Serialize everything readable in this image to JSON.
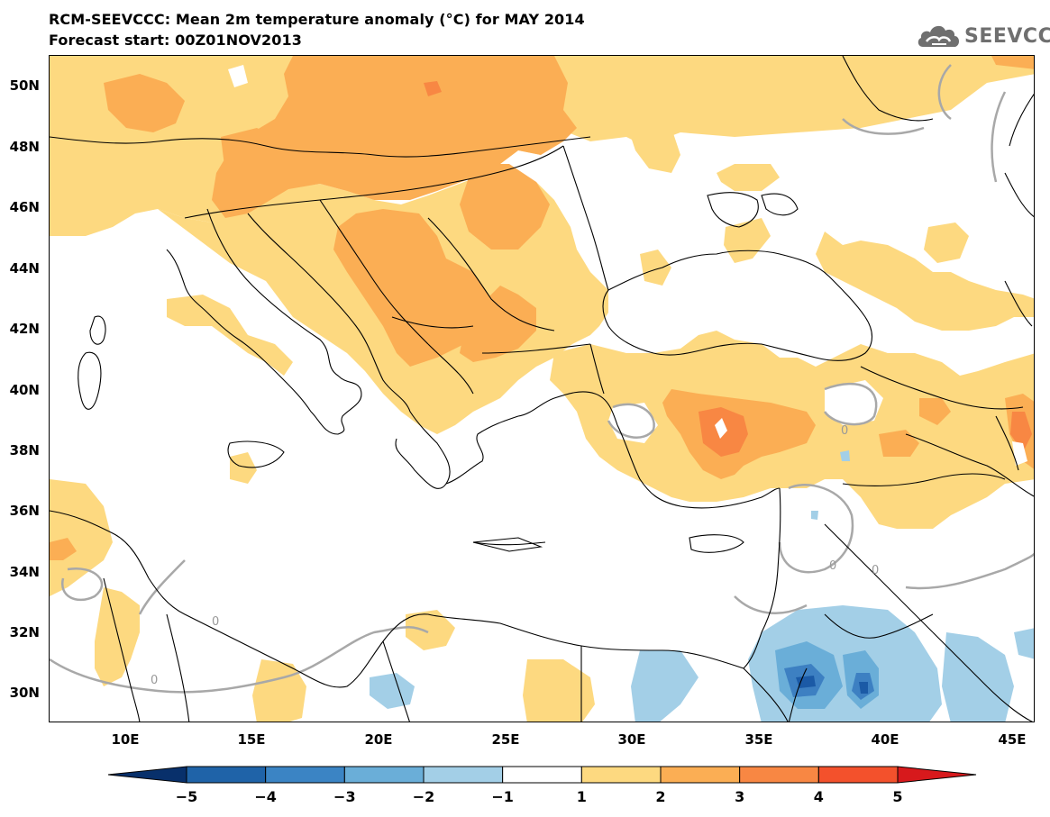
{
  "header": {
    "title_line1": "RCM-SEEVCCC: Mean 2m temperature anomaly (°C) for MAY 2014",
    "title_line2": "Forecast start: 00Z01NOV2013",
    "logo_text": "SEEVCCC"
  },
  "map": {
    "lat_labels": [
      "50N",
      "48N",
      "46N",
      "44N",
      "42N",
      "40N",
      "38N",
      "36N",
      "34N",
      "32N",
      "30N"
    ],
    "lon_labels": [
      "10E",
      "15E",
      "20E",
      "25E",
      "30E",
      "35E",
      "40E",
      "45E"
    ],
    "contour_labels": [
      "0",
      "0",
      "0",
      "0",
      "0"
    ],
    "colors": {
      "anomaly_1_2": "#fdd980",
      "anomaly_2_3": "#fbae54",
      "anomaly_3_4": "#f88743",
      "anomaly_neg_1_2": "#a3cfe7",
      "anomaly_neg_2_3": "#6aaed8",
      "anomaly_neg_3_4": "#3d80c2",
      "anomaly_neg_4_5": "#1b5aa6",
      "coastline": "#000000",
      "zero_contour": "#a8a8a8"
    }
  },
  "colorbar": {
    "labels": [
      "−5",
      "−4",
      "−3",
      "−2",
      "−1",
      "1",
      "2",
      "3",
      "4",
      "5"
    ],
    "colors": [
      "#08306b",
      "#1f63a8",
      "#3b84c4",
      "#6aaed8",
      "#a3cfe7",
      "#ffffff",
      "#fdd980",
      "#fbae54",
      "#f88743",
      "#f3512c",
      "#d7191c"
    ]
  }
}
